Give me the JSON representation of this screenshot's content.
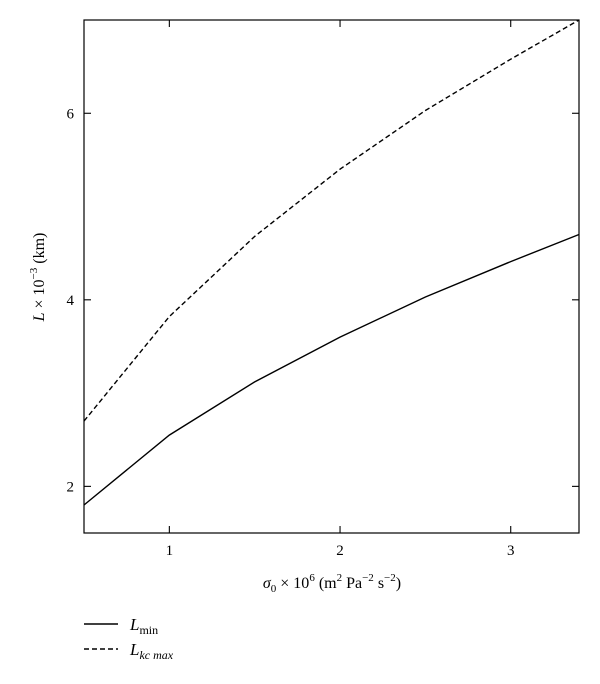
{
  "chart_data": {
    "type": "line",
    "x": [
      0.5,
      1.0,
      1.5,
      2.0,
      2.5,
      3.0,
      3.4
    ],
    "series": [
      {
        "name": "L_min",
        "style": "solid",
        "color": "#000000",
        "values": [
          1.8,
          2.55,
          3.12,
          3.6,
          4.03,
          4.41,
          4.7
        ]
      },
      {
        "name": "L_kc max",
        "style": "dashed",
        "color": "#000000",
        "values": [
          2.7,
          3.82,
          4.68,
          5.4,
          6.03,
          6.58,
          7.0
        ]
      }
    ],
    "xlim": [
      0.5,
      3.4
    ],
    "ylim": [
      1.5,
      7.0
    ],
    "xticks": [
      1,
      2,
      3
    ],
    "yticks": [
      2,
      4,
      6
    ],
    "xticks_labels": [
      "1",
      "2",
      "3"
    ],
    "yticks_labels": [
      "2",
      "4",
      "6"
    ],
    "xlabel": "σ0 × 10^6 (m^2 Pa^-2 s^-2)",
    "ylabel": "L × 10^-3 (km)",
    "grid": false,
    "legend_placement": "bottom-left, below plot",
    "legend": [
      {
        "main": "L",
        "sub": "min",
        "style": "solid"
      },
      {
        "main": "L",
        "sub": "kc max",
        "style": "dashed"
      }
    ],
    "xlabel_parts": {
      "sigma": "σ",
      "sub0": "0",
      "times": " × 10",
      "exp6": "6",
      "paren1": " (m",
      "exp2": "2",
      "pa": " Pa",
      "expm2a": "−2",
      "s": " s",
      "expm2b": "−2",
      "paren2": ")"
    },
    "ylabel_parts": {
      "L": "L",
      "times": " × 10",
      "exp": "−3",
      "unit": " (km)"
    }
  }
}
